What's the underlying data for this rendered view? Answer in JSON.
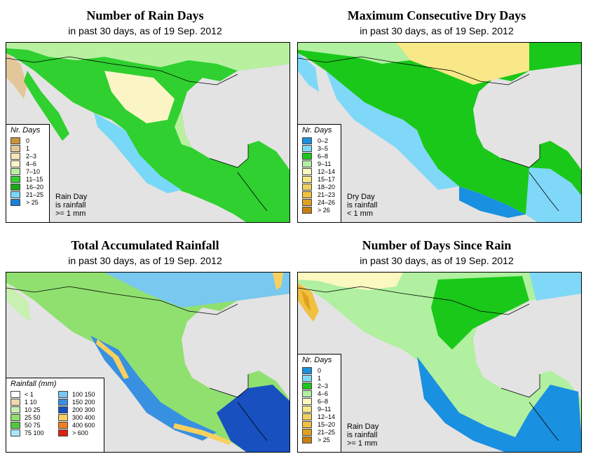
{
  "panels": [
    {
      "title": "Number of Rain Days",
      "subtitle": "in past 30 days, as of  19 Sep. 2012",
      "legend_title": "Nr. Days",
      "legend": [
        {
          "label": "0",
          "color": "#c8953a"
        },
        {
          "label": "1",
          "color": "#e3c79a"
        },
        {
          "label": "2–3",
          "color": "#f5e6b8"
        },
        {
          "label": "4–6",
          "color": "#fbf5c6"
        },
        {
          "label": "7–10",
          "color": "#b8f0a0"
        },
        {
          "label": "11–15",
          "color": "#2fd02f"
        },
        {
          "label": "16–20",
          "color": "#1aa81a"
        },
        {
          "label": "21–25",
          "color": "#78d8f8"
        },
        {
          "label": "> 25",
          "color": "#1a80d8"
        }
      ],
      "note": "Rain Day\nis rainfall\n>= 1 mm"
    },
    {
      "title": "Maximum Consecutive Dry Days",
      "subtitle": "in past 30 days, as of  19 Sep. 2012",
      "legend_title": "Nr. Days",
      "legend": [
        {
          "label": "0–2",
          "color": "#1a90e0"
        },
        {
          "label": "3–5",
          "color": "#80d8f8"
        },
        {
          "label": "6–8",
          "color": "#1ac81a"
        },
        {
          "label": "9–11",
          "color": "#b0f0a0"
        },
        {
          "label": "12–14",
          "color": "#fbf8c0"
        },
        {
          "label": "15–17",
          "color": "#f8e888"
        },
        {
          "label": "18–20",
          "color": "#f0d060"
        },
        {
          "label": "21–23",
          "color": "#f0c040"
        },
        {
          "label": "24–26",
          "color": "#e0a020"
        },
        {
          "label": "> 26",
          "color": "#c88010"
        }
      ],
      "note": "Dry Day\nis rainfall\n< 1 mm"
    },
    {
      "title": "Total Accumulated Rainfall",
      "subtitle": "in past 30 days, as of  19 Sep. 2012",
      "legend_title": "Rainfall (mm)",
      "legend": [
        {
          "label": "< 1",
          "color": "#ffffff"
        },
        {
          "label": "1    10",
          "color": "#f0d8b0"
        },
        {
          "label": "10    25",
          "color": "#c8f0b0"
        },
        {
          "label": "25    50",
          "color": "#90e070"
        },
        {
          "label": "50    75",
          "color": "#50c840"
        },
        {
          "label": "75   100",
          "color": "#a8e8f8"
        },
        {
          "label": "100  150",
          "color": "#78c8f0"
        },
        {
          "label": "150  200",
          "color": "#3890e0"
        },
        {
          "label": "200  300",
          "color": "#1850c0"
        },
        {
          "label": "300  400",
          "color": "#f8d060"
        },
        {
          "label": "400  600",
          "color": "#f08020"
        },
        {
          "label": "> 600",
          "color": "#e02010"
        }
      ],
      "note": ""
    },
    {
      "title": "Number of Days Since Rain",
      "subtitle": "in past 30 days, as of  19 Sep. 2012",
      "legend_title": "Nr. Days",
      "legend": [
        {
          "label": "0",
          "color": "#1a90e0"
        },
        {
          "label": "1",
          "color": "#80d8f8"
        },
        {
          "label": "2–3",
          "color": "#1ac81a"
        },
        {
          "label": "4–6",
          "color": "#b0f0a0"
        },
        {
          "label": "6–8",
          "color": "#fbf8c0"
        },
        {
          "label": "9–11",
          "color": "#f8e888"
        },
        {
          "label": "12–14",
          "color": "#f0d060"
        },
        {
          "label": "15–20",
          "color": "#f0c040"
        },
        {
          "label": "21–25",
          "color": "#e0a020"
        },
        {
          "label": "> 25",
          "color": "#c88010"
        }
      ],
      "note": "Rain Day\nis rainfall\n>= 1 mm"
    }
  ]
}
